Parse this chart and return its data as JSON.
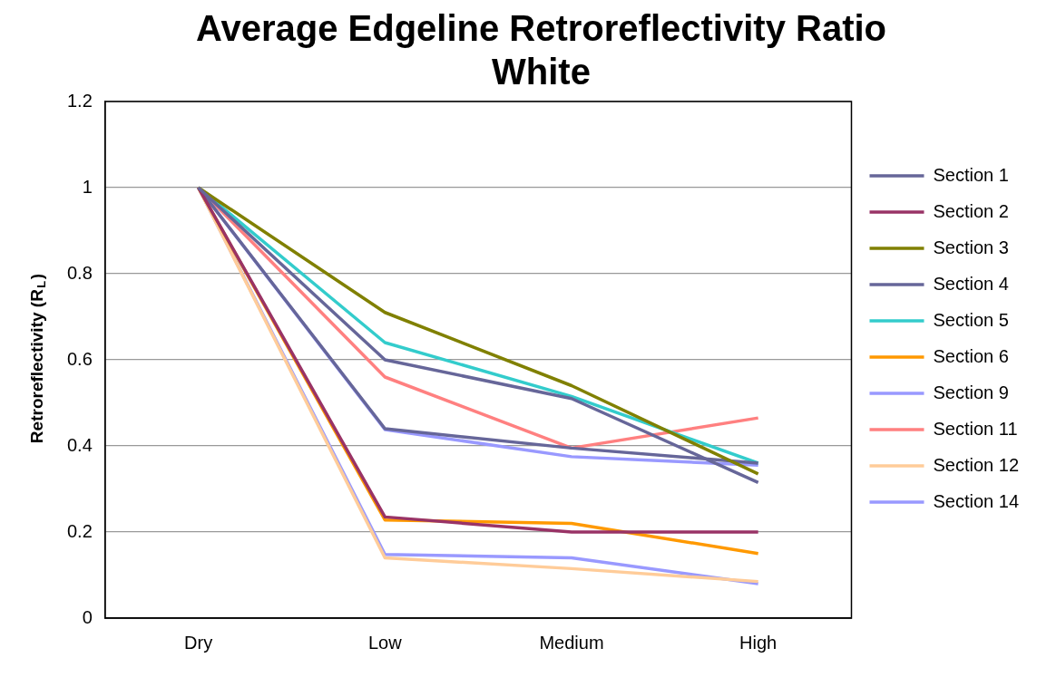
{
  "chart_data": {
    "type": "line",
    "title": "Average Edgeline Retroreflectivity Ratio White",
    "ylabel": "Retroreflectivity (R$_{L}$)",
    "categories": [
      "Dry",
      "Low",
      "Medium",
      "High"
    ],
    "series": [
      {
        "name": "Section 1",
        "color": "#666699",
        "values": [
          1,
          0.6,
          0.51,
          0.315
        ]
      },
      {
        "name": "Section 2",
        "color": "#993366",
        "values": [
          1,
          0.235,
          0.2,
          0.2
        ]
      },
      {
        "name": "Section 3",
        "color": "#808000",
        "values": [
          1,
          0.71,
          0.54,
          0.335
        ]
      },
      {
        "name": "Section 4",
        "color": "#666699",
        "values": [
          1,
          0.44,
          0.395,
          0.36
        ]
      },
      {
        "name": "Section 5",
        "color": "#33cccc",
        "values": [
          1,
          0.64,
          0.515,
          0.36
        ]
      },
      {
        "name": "Section 6",
        "color": "#ff9900",
        "values": [
          1,
          0.228,
          0.22,
          0.15
        ]
      },
      {
        "name": "Section 9",
        "color": "#9999ff",
        "values": [
          1,
          0.438,
          0.375,
          0.355
        ]
      },
      {
        "name": "Section 11",
        "color": "#ff8080",
        "values": [
          1,
          0.56,
          0.395,
          0.465
        ]
      },
      {
        "name": "Section 12",
        "color": "#ffcc99",
        "values": [
          1,
          0.14,
          0.115,
          0.085
        ]
      },
      {
        "name": "Section 14",
        "color": "#9999ff",
        "values": [
          1,
          0.148,
          0.14,
          0.08
        ]
      }
    ],
    "ylim": [
      0,
      1.2
    ],
    "yticks": [
      0,
      0.2,
      0.4,
      0.6,
      0.8,
      1,
      1.2
    ],
    "grid": "y",
    "legend": "right",
    "marker": "none",
    "line_style": "solid"
  }
}
